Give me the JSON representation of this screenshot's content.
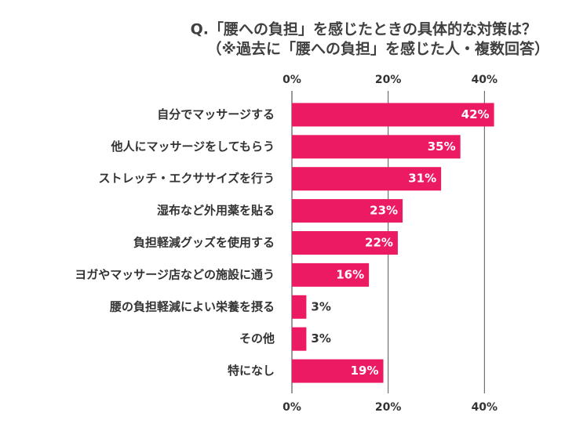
{
  "chart_data": {
    "type": "bar",
    "orientation": "horizontal",
    "title": "Q.「腰への負担」を感じたときの具体的な対策は？",
    "subtitle": "（※過去に「腰への負担」を感じた人・複数回答）",
    "categories": [
      "自分でマッサージする",
      "他人にマッサージをしてもらう",
      "ストレッチ・エクササイズを行う",
      "湿布など外用薬を貼る",
      "負担軽減グッズを使用する",
      "ヨガやマッサージ店などの施設に通う",
      "腰の負担軽減によい栄養を摂る",
      "その他",
      "特になし"
    ],
    "values": [
      42,
      35,
      31,
      23,
      22,
      16,
      3,
      3,
      19
    ],
    "value_labels": [
      "42%",
      "35%",
      "31%",
      "23%",
      "22%",
      "16%",
      "3%",
      "3%",
      "19%"
    ],
    "color": "#ec1a63",
    "xlim": [
      0,
      45
    ],
    "xticks": [
      {
        "value": 0,
        "label": "0%"
      },
      {
        "value": 20,
        "label": "20%"
      },
      {
        "value": 40,
        "label": "40%"
      }
    ],
    "grid": true
  }
}
